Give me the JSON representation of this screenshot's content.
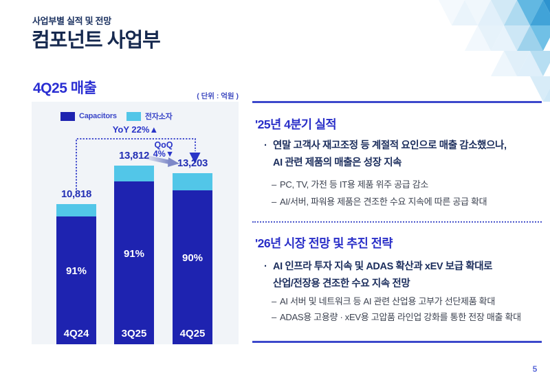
{
  "header": {
    "pretitle": "사업부별 실적 및 전망",
    "title": "컴포넌트 사업부"
  },
  "chart_section": {
    "unit_label": "( 단위 : 억원 )"
  },
  "chart_data": {
    "type": "bar",
    "stacked": true,
    "title": "4Q25 매출",
    "unit": "억원",
    "categories": [
      "4Q24",
      "3Q25",
      "4Q25"
    ],
    "totals": [
      10818,
      13812,
      13203
    ],
    "total_labels": [
      "10,818",
      "13,812",
      "13,203"
    ],
    "series": [
      {
        "name": "Capacitors",
        "share_pct": [
          91,
          91,
          90
        ],
        "color": "#1e23b0"
      },
      {
        "name": "전자소자",
        "share_pct": [
          9,
          9,
          10
        ],
        "color": "#52c6e8"
      }
    ],
    "share_labels": [
      "91%",
      "91%",
      "90%"
    ],
    "annotations": {
      "yoy": "YoY 22%▲",
      "qoq_line1": "QoQ",
      "qoq_line2": "4%▼"
    },
    "legend_position": "top-left",
    "ylim": [
      0,
      14500
    ],
    "grid": false
  },
  "markers": {
    "bullet": "·",
    "dash": "–"
  },
  "right": {
    "sections": [
      {
        "heading": "'25년 4분기 실적",
        "bullet_lines": [
          "연말 고객사 재고조정 등 계절적 요인으로 매출 감소했으나,",
          "AI 관련 제품의 매출은 성장 지속"
        ],
        "subitems": [
          "PC, TV, 가전 등 IT용 제품 위주 공급 감소",
          "AI/서버, 파워용 제품은 견조한 수요 지속에 따른 공급 확대"
        ]
      },
      {
        "heading": "'26년 시장 전망 및 추진 전략",
        "bullet_lines": [
          "AI 인프라 투자 지속 및 ADAS 확산과 xEV 보급 확대로",
          "산업/전장용 견조한 수요 지속 전망"
        ],
        "subitems": [
          "AI 서버 및 네트워크 등 AI 관련 산업용 고부가 선단제품 확대",
          "ADAS용 고용량 · xEV용 고압품 라인업 강화를 통한 전장 매출 확대"
        ]
      }
    ]
  },
  "footer": {
    "page_number": "5"
  }
}
